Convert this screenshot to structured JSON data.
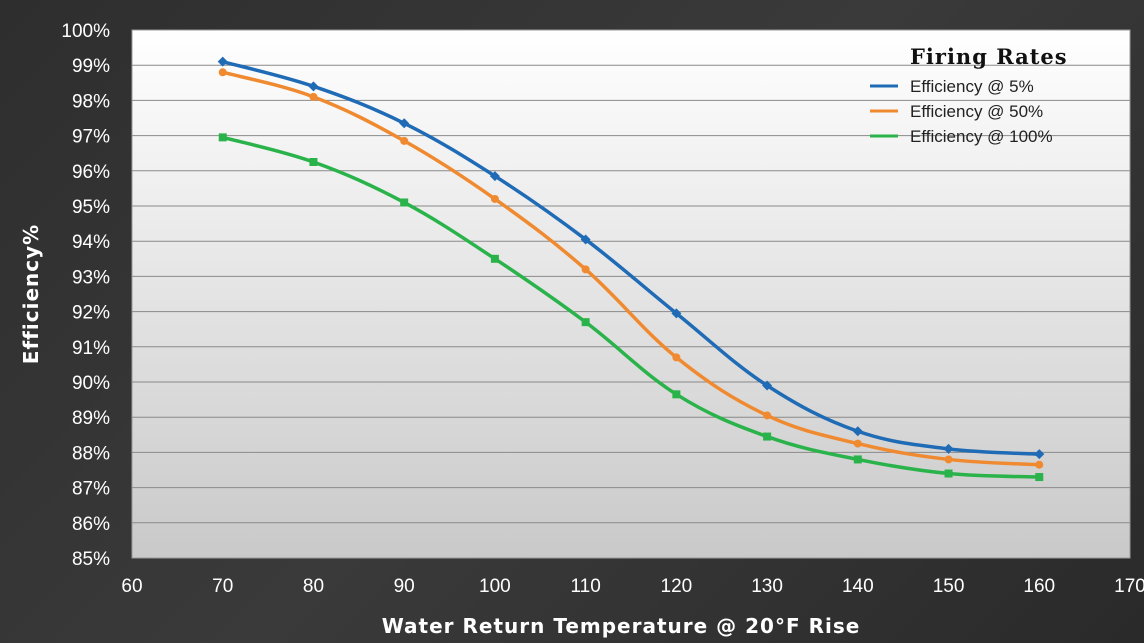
{
  "chart_data": {
    "type": "line",
    "title": "",
    "xlabel": "Water Return Temperature @ 20°F Rise",
    "ylabel": "Efficiency%",
    "xlim": [
      60,
      170
    ],
    "ylim": [
      85,
      100
    ],
    "x_ticks": [
      "60",
      "70",
      "80",
      "90",
      "100",
      "110",
      "120",
      "130",
      "140",
      "150",
      "160",
      "170"
    ],
    "y_ticks": [
      "85%",
      "86%",
      "87%",
      "88%",
      "89%",
      "90%",
      "91%",
      "92%",
      "93%",
      "94%",
      "95%",
      "96%",
      "97%",
      "98%",
      "99%",
      "100%"
    ],
    "grid": "horizontal",
    "legend_title": "Firing Rates",
    "legend_position": "top-right",
    "x": [
      70,
      80,
      90,
      100,
      110,
      120,
      130,
      140,
      150,
      160
    ],
    "series": [
      {
        "name": "Efficiency @ 5%",
        "color": "#1f6bb5",
        "marker": "diamond",
        "values": [
          99.1,
          98.4,
          97.35,
          95.85,
          94.05,
          91.95,
          89.9,
          88.6,
          88.1,
          87.95
        ]
      },
      {
        "name": "Efficiency @ 50%",
        "color": "#f08a30",
        "marker": "circle",
        "values": [
          98.8,
          98.1,
          96.85,
          95.2,
          93.2,
          90.7,
          89.05,
          88.25,
          87.8,
          87.65
        ]
      },
      {
        "name": "Efficiency @ 100%",
        "color": "#2ab34a",
        "marker": "square",
        "values": [
          96.95,
          96.25,
          95.1,
          93.5,
          91.7,
          89.65,
          88.45,
          87.8,
          87.4,
          87.3
        ]
      }
    ]
  }
}
